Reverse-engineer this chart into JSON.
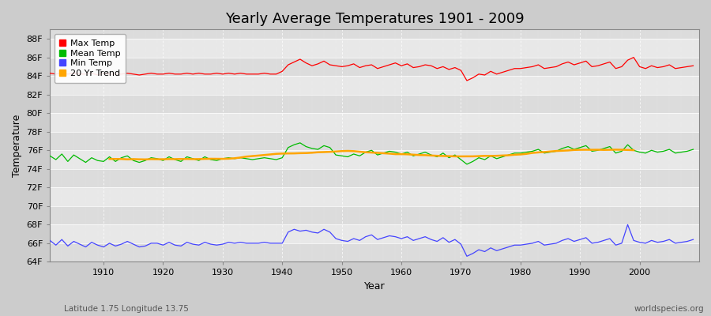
{
  "title": "Yearly Average Temperatures 1901 - 2009",
  "xlabel": "Year",
  "ylabel": "Temperature",
  "subtitle_left": "Latitude 1.75 Longitude 13.75",
  "subtitle_right": "worldspecies.org",
  "years": [
    1901,
    1902,
    1903,
    1904,
    1905,
    1906,
    1907,
    1908,
    1909,
    1910,
    1911,
    1912,
    1913,
    1914,
    1915,
    1916,
    1917,
    1918,
    1919,
    1920,
    1921,
    1922,
    1923,
    1924,
    1925,
    1926,
    1927,
    1928,
    1929,
    1930,
    1931,
    1932,
    1933,
    1934,
    1935,
    1936,
    1937,
    1938,
    1939,
    1940,
    1941,
    1942,
    1943,
    1944,
    1945,
    1946,
    1947,
    1948,
    1949,
    1950,
    1951,
    1952,
    1953,
    1954,
    1955,
    1956,
    1957,
    1958,
    1959,
    1960,
    1961,
    1962,
    1963,
    1964,
    1965,
    1966,
    1967,
    1968,
    1969,
    1970,
    1971,
    1972,
    1973,
    1974,
    1975,
    1976,
    1977,
    1978,
    1979,
    1980,
    1981,
    1982,
    1983,
    1984,
    1985,
    1986,
    1987,
    1988,
    1989,
    1990,
    1991,
    1992,
    1993,
    1994,
    1995,
    1996,
    1997,
    1998,
    1999,
    2000,
    2001,
    2002,
    2003,
    2004,
    2005,
    2006,
    2007,
    2008,
    2009
  ],
  "max_temp": [
    84.3,
    84.2,
    84.3,
    84.2,
    84.3,
    84.2,
    84.2,
    84.3,
    84.1,
    84.3,
    84.2,
    84.2,
    84.2,
    84.3,
    84.2,
    84.1,
    84.2,
    84.3,
    84.2,
    84.2,
    84.3,
    84.2,
    84.2,
    84.3,
    84.2,
    84.3,
    84.2,
    84.2,
    84.3,
    84.2,
    84.3,
    84.2,
    84.3,
    84.2,
    84.2,
    84.2,
    84.3,
    84.2,
    84.2,
    84.5,
    85.2,
    85.5,
    85.8,
    85.4,
    85.1,
    85.3,
    85.6,
    85.2,
    85.1,
    85.0,
    85.1,
    85.3,
    84.9,
    85.1,
    85.2,
    84.8,
    85.0,
    85.2,
    85.4,
    85.1,
    85.3,
    84.9,
    85.0,
    85.2,
    85.1,
    84.8,
    85.0,
    84.7,
    84.9,
    84.6,
    83.5,
    83.8,
    84.2,
    84.1,
    84.5,
    84.2,
    84.4,
    84.6,
    84.8,
    84.8,
    84.9,
    85.0,
    85.2,
    84.8,
    84.9,
    85.0,
    85.3,
    85.5,
    85.2,
    85.4,
    85.6,
    85.0,
    85.1,
    85.3,
    85.5,
    84.8,
    85.0,
    85.7,
    86.0,
    85.0,
    84.8,
    85.1,
    84.9,
    85.0,
    85.2,
    84.8,
    84.9,
    85.0,
    85.1
  ],
  "mean_temp": [
    75.4,
    75.0,
    75.6,
    74.8,
    75.5,
    75.1,
    74.7,
    75.2,
    74.9,
    74.8,
    75.3,
    74.8,
    75.2,
    75.4,
    74.9,
    74.7,
    74.9,
    75.2,
    75.1,
    74.9,
    75.3,
    75.0,
    74.8,
    75.3,
    75.1,
    74.9,
    75.3,
    75.0,
    74.9,
    75.1,
    75.2,
    75.1,
    75.2,
    75.1,
    75.0,
    75.1,
    75.2,
    75.1,
    75.0,
    75.2,
    76.3,
    76.6,
    76.8,
    76.4,
    76.2,
    76.1,
    76.5,
    76.3,
    75.5,
    75.4,
    75.3,
    75.6,
    75.4,
    75.8,
    76.0,
    75.5,
    75.7,
    75.9,
    75.8,
    75.6,
    75.8,
    75.4,
    75.6,
    75.8,
    75.5,
    75.3,
    75.7,
    75.2,
    75.5,
    75.0,
    74.5,
    74.8,
    75.2,
    75.0,
    75.4,
    75.1,
    75.3,
    75.5,
    75.7,
    75.7,
    75.8,
    75.9,
    76.1,
    75.7,
    75.8,
    75.9,
    76.2,
    76.4,
    76.1,
    76.3,
    76.5,
    75.9,
    76.0,
    76.2,
    76.4,
    75.7,
    75.9,
    76.6,
    76.0,
    75.8,
    75.7,
    76.0,
    75.8,
    75.9,
    76.1,
    75.7,
    75.8,
    75.9,
    76.1
  ],
  "min_temp": [
    66.3,
    65.8,
    66.4,
    65.7,
    66.2,
    65.9,
    65.6,
    66.1,
    65.8,
    65.6,
    66.0,
    65.7,
    65.9,
    66.2,
    65.9,
    65.6,
    65.7,
    66.0,
    66.0,
    65.8,
    66.1,
    65.8,
    65.7,
    66.1,
    65.9,
    65.8,
    66.1,
    65.9,
    65.8,
    65.9,
    66.1,
    66.0,
    66.1,
    66.0,
    66.0,
    66.0,
    66.1,
    66.0,
    66.0,
    66.0,
    67.2,
    67.5,
    67.3,
    67.4,
    67.2,
    67.1,
    67.5,
    67.2,
    66.5,
    66.3,
    66.2,
    66.5,
    66.3,
    66.7,
    66.9,
    66.4,
    66.6,
    66.8,
    66.7,
    66.5,
    66.7,
    66.3,
    66.5,
    66.7,
    66.4,
    66.2,
    66.6,
    66.1,
    66.4,
    65.9,
    64.6,
    64.9,
    65.3,
    65.1,
    65.5,
    65.2,
    65.4,
    65.6,
    65.8,
    65.8,
    65.9,
    66.0,
    66.2,
    65.8,
    65.9,
    66.0,
    66.3,
    66.5,
    66.2,
    66.4,
    66.6,
    66.0,
    66.1,
    66.3,
    66.5,
    65.8,
    66.0,
    68.0,
    66.3,
    66.1,
    66.0,
    66.3,
    66.1,
    66.2,
    66.4,
    66.0,
    66.1,
    66.2,
    66.4
  ],
  "trend_color": "#FFA500",
  "max_color": "#FF0000",
  "mean_color": "#00BB00",
  "min_color": "#4444FF",
  "ylim_min": 64,
  "ylim_max": 89,
  "yticks": [
    64,
    66,
    68,
    70,
    72,
    74,
    76,
    78,
    80,
    82,
    84,
    86,
    88
  ],
  "xticks": [
    1910,
    1920,
    1930,
    1940,
    1950,
    1960,
    1970,
    1980,
    1990,
    2000
  ],
  "band_colors": [
    "#DCDCDC",
    "#E8E8E8"
  ]
}
